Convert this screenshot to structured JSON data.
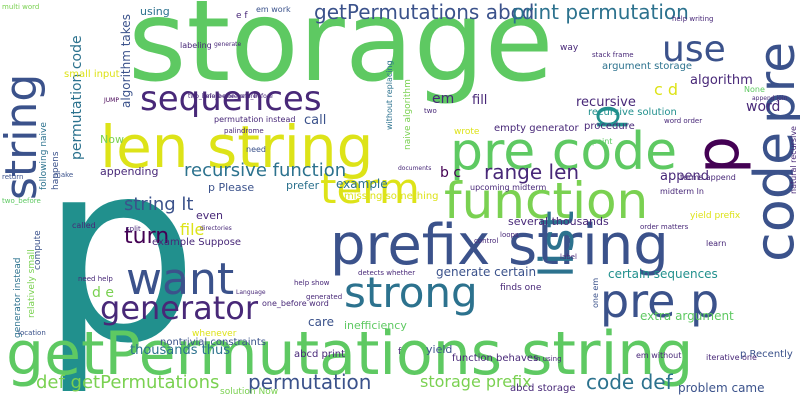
{
  "words": [
    {
      "text": "p",
      "color": "#21908d",
      "orientation": "horizontal"
    },
    {
      "text": "storage",
      "color": "#5ec962",
      "orientation": "horizontal"
    },
    {
      "text": "getPermutations string",
      "color": "#5ec962",
      "orientation": "horizontal"
    },
    {
      "text": "len string",
      "color": "#dde318",
      "orientation": "horizontal"
    },
    {
      "text": "prefix string",
      "color": "#3b528b",
      "orientation": "horizontal"
    },
    {
      "text": "code",
      "color": "#3b528b",
      "orientation": "vertical"
    },
    {
      "text": "pre",
      "color": "#3b528b",
      "orientation": "vertical"
    },
    {
      "text": "pre code",
      "color": "#5ec962",
      "orientation": "horizontal"
    },
    {
      "text": "function",
      "color": "#7ad151",
      "orientation": "horizontal"
    },
    {
      "text": "string",
      "color": "#3b528b",
      "orientation": "vertical"
    },
    {
      "text": "pre p",
      "color": "#3b528b",
      "orientation": "horizontal"
    },
    {
      "text": "list",
      "color": "#2c728e",
      "orientation": "vertical"
    },
    {
      "text": "p",
      "color": "#440154",
      "orientation": "vertical"
    },
    {
      "text": "want",
      "color": "#3b528b",
      "orientation": "horizontal"
    },
    {
      "text": "strong",
      "color": "#2c728e",
      "orientation": "horizontal"
    },
    {
      "text": "term",
      "color": "#dde318",
      "orientation": "horizontal"
    },
    {
      "text": "sequences",
      "color": "#482878",
      "orientation": "horizontal"
    },
    {
      "text": "generator",
      "color": "#482878",
      "orientation": "horizontal"
    },
    {
      "text": "use",
      "color": "#3b528b",
      "orientation": "horizontal"
    },
    {
      "text": "p",
      "color": "#21908d",
      "orientation": "vertical"
    },
    {
      "text": "getPermutations abcd",
      "color": "#3b528b",
      "orientation": "horizontal"
    },
    {
      "text": "print permutation",
      "color": "#2c728e",
      "orientation": "horizontal"
    },
    {
      "text": "recursive function",
      "color": "#2c728e",
      "orientation": "horizontal"
    },
    {
      "text": "range len",
      "color": "#482878",
      "orientation": "horizontal"
    },
    {
      "text": "string lt",
      "color": "#3b528b",
      "orientation": "horizontal"
    },
    {
      "text": "turn",
      "color": "#440154",
      "orientation": "horizontal"
    },
    {
      "text": "def getPermutations",
      "color": "#7ad151",
      "orientation": "horizontal"
    },
    {
      "text": "permutation",
      "color": "#3b528b",
      "orientation": "horizontal"
    },
    {
      "text": "storage prefix",
      "color": "#7ad151",
      "orientation": "horizontal"
    },
    {
      "text": "code def",
      "color": "#2c728e",
      "orientation": "horizontal"
    },
    {
      "text": "permutation code",
      "color": "#2c728e",
      "orientation": "vertical"
    },
    {
      "text": "algorithm takes",
      "color": "#3b528b",
      "orientation": "vertical"
    },
    {
      "text": "file",
      "color": "#dde318",
      "orientation": "horizontal"
    },
    {
      "text": "d e",
      "color": "#7ad151",
      "orientation": "horizontal"
    },
    {
      "text": "b c",
      "color": "#440154",
      "orientation": "horizontal"
    },
    {
      "text": "c d",
      "color": "#dde318",
      "orientation": "horizontal"
    },
    {
      "text": "em",
      "color": "#482878",
      "orientation": "horizontal"
    },
    {
      "text": "fill",
      "color": "#482878",
      "orientation": "horizontal"
    },
    {
      "text": "call",
      "color": "#3b528b",
      "orientation": "horizontal"
    },
    {
      "text": "append",
      "color": "#482878",
      "orientation": "horizontal"
    },
    {
      "text": "word",
      "color": "#482878",
      "orientation": "horizontal"
    },
    {
      "text": "algorithm",
      "color": "#482878",
      "orientation": "horizontal"
    },
    {
      "text": "recursive",
      "color": "#482878",
      "orientation": "horizontal"
    },
    {
      "text": "thousands thus",
      "color": "#2c728e",
      "orientation": "horizontal"
    },
    {
      "text": "generate certain",
      "color": "#3b528b",
      "orientation": "horizontal"
    },
    {
      "text": "certain sequences",
      "color": "#21908d",
      "orientation": "horizontal"
    },
    {
      "text": "extra argument",
      "color": "#5ec962",
      "orientation": "horizontal"
    },
    {
      "text": "abcd print",
      "color": "#482878",
      "orientation": "horizontal"
    },
    {
      "text": "abcd storage",
      "color": "#482878",
      "orientation": "horizontal"
    },
    {
      "text": "problem came",
      "color": "#3b528b",
      "orientation": "horizontal"
    },
    {
      "text": "function behaves",
      "color": "#482878",
      "orientation": "horizontal"
    },
    {
      "text": "yield",
      "color": "#3b528b",
      "orientation": "horizontal"
    },
    {
      "text": "care",
      "color": "#3b528b",
      "orientation": "horizontal"
    },
    {
      "text": "nontrivial constraints",
      "color": "#3b528b",
      "orientation": "horizontal"
    },
    {
      "text": "example Suppose",
      "color": "#482878",
      "orientation": "horizontal"
    },
    {
      "text": "example",
      "color": "#2c728e",
      "orientation": "horizontal"
    },
    {
      "text": "even",
      "color": "#482878",
      "orientation": "horizontal"
    },
    {
      "text": "prefer",
      "color": "#2c728e",
      "orientation": "horizontal"
    },
    {
      "text": "p Please",
      "color": "#3b528b",
      "orientation": "horizontal"
    },
    {
      "text": "appending",
      "color": "#482878",
      "orientation": "horizontal"
    },
    {
      "text": "Now",
      "color": "#7ad151",
      "orientation": "horizontal"
    },
    {
      "text": "several thousands",
      "color": "#482878",
      "orientation": "horizontal"
    },
    {
      "text": "empty generator",
      "color": "#482878",
      "orientation": "horizontal"
    },
    {
      "text": "recursive solution",
      "color": "#21908d",
      "orientation": "horizontal"
    },
    {
      "text": "argument storage",
      "color": "#2c728e",
      "orientation": "horizontal"
    },
    {
      "text": "procedure",
      "color": "#482878",
      "orientation": "horizontal"
    },
    {
      "text": "inefficiency",
      "color": "#5ec962",
      "orientation": "horizontal"
    },
    {
      "text": "p Recently",
      "color": "#3b528b",
      "orientation": "horizontal"
    },
    {
      "text": "iterative one",
      "color": "#482878",
      "orientation": "horizontal"
    },
    {
      "text": "em without",
      "color": "#482878",
      "orientation": "horizontal"
    },
    {
      "text": "terms append",
      "color": "#482878",
      "orientation": "horizontal"
    },
    {
      "text": "midterm ln",
      "color": "#482878",
      "orientation": "horizontal"
    },
    {
      "text": "upcoming midterm",
      "color": "#482878",
      "orientation": "horizontal"
    },
    {
      "text": "missing something",
      "color": "#dde318",
      "orientation": "horizontal"
    },
    {
      "text": "wrote",
      "color": "#dde318",
      "orientation": "horizontal"
    },
    {
      "text": "finds one",
      "color": "#482878",
      "orientation": "horizontal"
    },
    {
      "text": "yield prefix",
      "color": "#dde318",
      "orientation": "horizontal"
    },
    {
      "text": "solution Now",
      "color": "#7ad151",
      "orientation": "horizontal"
    },
    {
      "text": "whenever",
      "color": "#dde318",
      "orientation": "horizontal"
    },
    {
      "text": "one_before word",
      "color": "#482878",
      "orientation": "horizontal"
    },
    {
      "text": "help show",
      "color": "#482878",
      "orientation": "horizontal"
    },
    {
      "text": "using",
      "color": "#2c728e",
      "orientation": "horizontal"
    },
    {
      "text": "labeling",
      "color": "#482878",
      "orientation": "horizontal"
    },
    {
      "text": "permutation instead",
      "color": "#482878",
      "orientation": "horizontal"
    },
    {
      "text": "small input",
      "color": "#dde318",
      "orientation": "horizontal"
    },
    {
      "text": "naive algorithm",
      "color": "#7ad151",
      "orientation": "vertical"
    },
    {
      "text": "without replacing",
      "color": "#2c728e",
      "orientation": "vertical"
    },
    {
      "text": "generator instead",
      "color": "#2c728e",
      "orientation": "vertical"
    },
    {
      "text": "relatively small",
      "color": "#7ad151",
      "orientation": "vertical"
    },
    {
      "text": "following naive",
      "color": "#2c728e",
      "orientation": "vertical"
    },
    {
      "text": "happens",
      "color": "#3b528b",
      "orientation": "vertical"
    },
    {
      "text": "compute",
      "color": "#3b528b",
      "orientation": "vertical"
    },
    {
      "text": "natural recursive",
      "color": "#482878",
      "orientation": "vertical"
    },
    {
      "text": "called",
      "color": "#482878",
      "orientation": "horizontal"
    },
    {
      "text": "need",
      "color": "#3b528b",
      "orientation": "horizontal"
    },
    {
      "text": "way",
      "color": "#482878",
      "orientation": "horizontal"
    },
    {
      "text": "point",
      "color": "#5ec962",
      "orientation": "horizontal"
    },
    {
      "text": "stack frame",
      "color": "#482878",
      "orientation": "horizontal"
    },
    {
      "text": "help writing",
      "color": "#482878",
      "orientation": "horizontal"
    },
    {
      "text": "word order",
      "color": "#482878",
      "orientation": "horizontal"
    },
    {
      "text": "one_before one_before",
      "color": "#482878",
      "orientation": "horizontal"
    },
    {
      "text": "generated",
      "color": "#482878",
      "orientation": "horizontal"
    },
    {
      "text": "learn",
      "color": "#482878",
      "orientation": "horizontal"
    },
    {
      "text": "None",
      "color": "#5ec962",
      "orientation": "horizontal"
    },
    {
      "text": "return",
      "color": "#3b528b",
      "orientation": "horizontal"
    },
    {
      "text": "multi word",
      "color": "#7ad151",
      "orientation": "horizontal"
    },
    {
      "text": "split",
      "color": "#482878",
      "orientation": "horizontal"
    },
    {
      "text": "palindrome",
      "color": "#482878",
      "orientation": "horizontal"
    },
    {
      "text": "order matters",
      "color": "#482878",
      "orientation": "horizontal"
    },
    {
      "text": "em work",
      "color": "#3b528b",
      "orientation": "horizontal"
    },
    {
      "text": "ln using",
      "color": "#482878",
      "orientation": "horizontal"
    },
    {
      "text": "loops",
      "color": "#482878",
      "orientation": "horizontal"
    },
    {
      "text": "location",
      "color": "#3b528b",
      "orientation": "horizontal"
    },
    {
      "text": "detects whether",
      "color": "#482878",
      "orientation": "horizontal"
    },
    {
      "text": "Language",
      "color": "#482878",
      "orientation": "horizontal"
    },
    {
      "text": "two_before one_before",
      "color": "#482878",
      "orientation": "horizontal"
    },
    {
      "text": "documents",
      "color": "#482878",
      "orientation": "horizontal"
    },
    {
      "text": "directories",
      "color": "#482878",
      "orientation": "horizontal"
    },
    {
      "text": "generate",
      "color": "#482878",
      "orientation": "horizontal"
    },
    {
      "text": "control",
      "color": "#482878",
      "orientation": "horizontal"
    },
    {
      "text": "need help",
      "color": "#482878",
      "orientation": "horizontal"
    },
    {
      "text": "label",
      "color": "#482878",
      "orientation": "horizontal"
    },
    {
      "text": "JUMP",
      "color": "#440154",
      "orientation": "horizontal"
    },
    {
      "text": "make",
      "color": "#3b528b",
      "orientation": "horizontal"
    },
    {
      "text": "two_before",
      "color": "#5ec962",
      "orientation": "horizontal"
    },
    {
      "text": "append join",
      "color": "#482878",
      "orientation": "horizontal"
    },
    {
      "text": "e f",
      "color": "#482878",
      "orientation": "horizontal"
    },
    {
      "text": "f",
      "color": "#482878",
      "orientation": "horizontal"
    },
    {
      "text": "two",
      "color": "#482878",
      "orientation": "horizontal"
    },
    {
      "text": "one em",
      "color": "#3b528b",
      "orientation": "vertical"
    }
  ]
}
